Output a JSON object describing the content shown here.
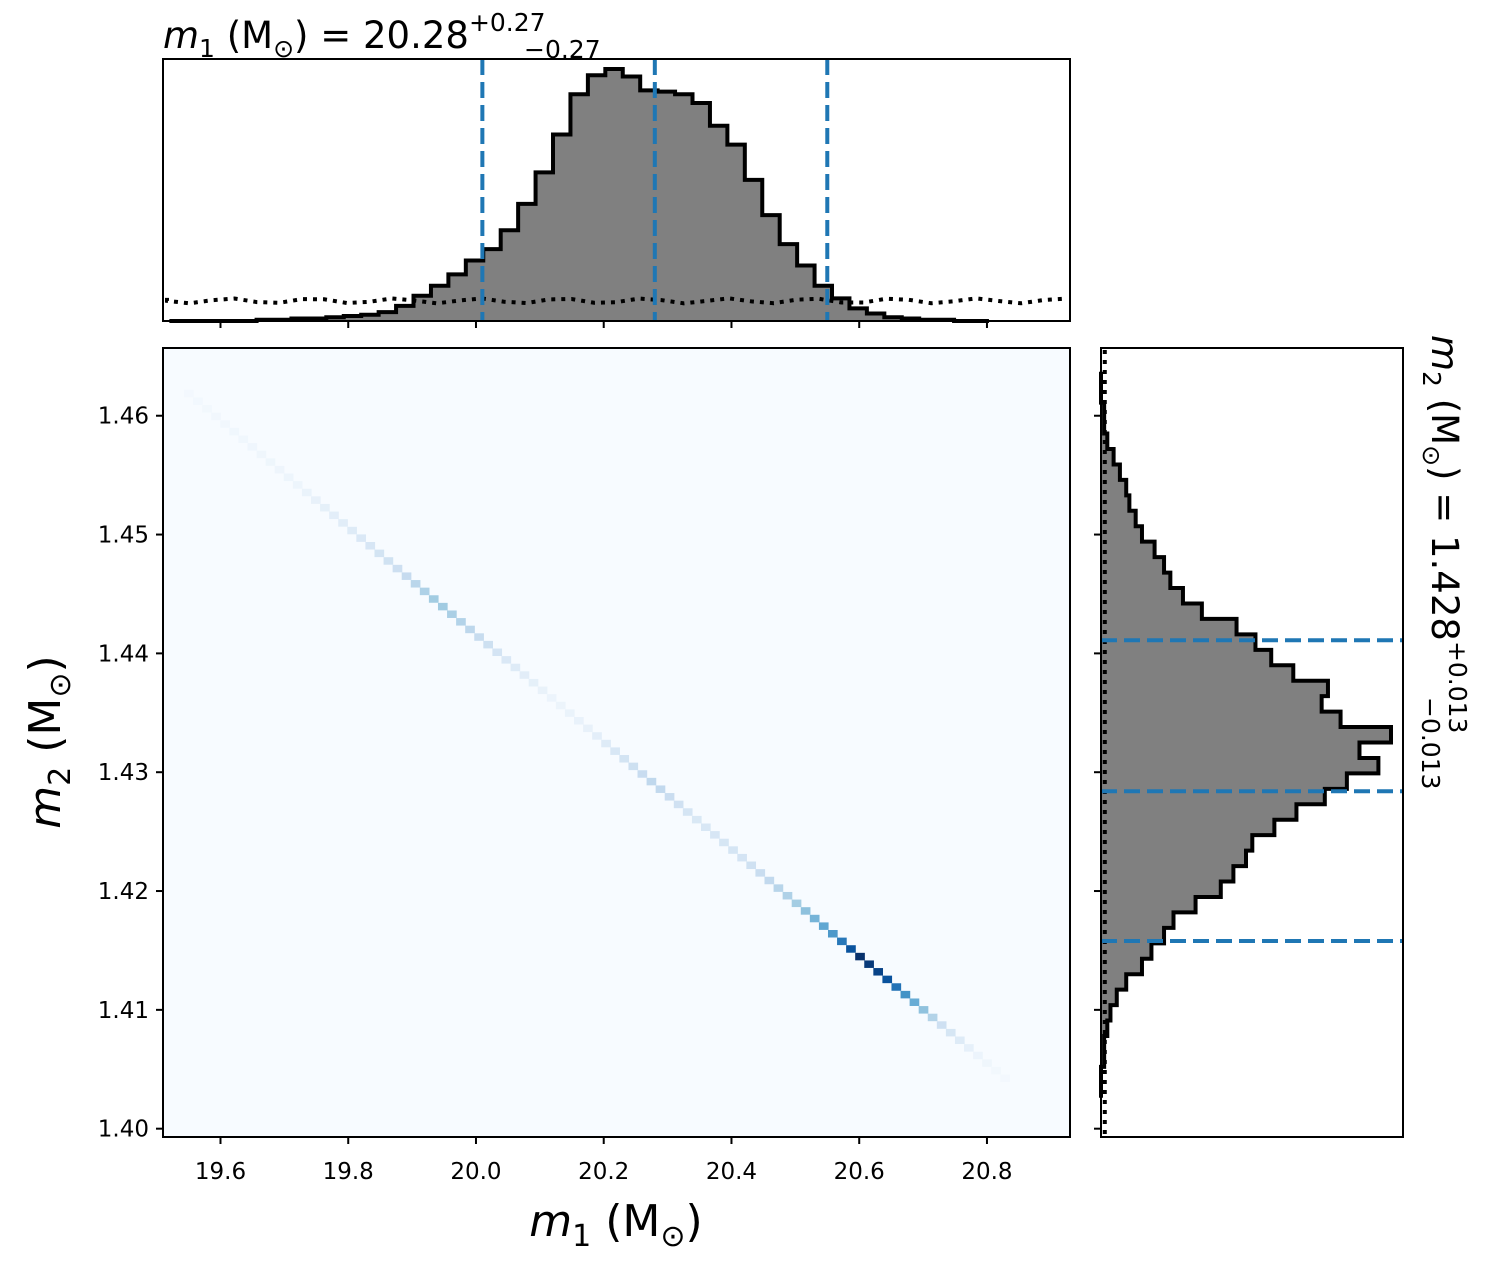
{
  "chart_data": [
    {
      "type": "histogram",
      "panel": "top-marginal",
      "title": {
        "symbol": "m",
        "subscript": "1",
        "unit": " (M",
        "sun": "⊙",
        "close": ") = ",
        "median": "20.28",
        "plus": "+0.27",
        "minus": "−0.27"
      },
      "xlim": [
        19.51,
        20.93
      ],
      "bins_start": 19.52,
      "bin_width": 0.0273,
      "counts": [
        0,
        0,
        0,
        0,
        0,
        1,
        1,
        2,
        2,
        3,
        4,
        5,
        7,
        12,
        20,
        28,
        37,
        48,
        57,
        72,
        93,
        118,
        148,
        180,
        195,
        200,
        194,
        183,
        182,
        180,
        173,
        155,
        140,
        112,
        84,
        61,
        44,
        28,
        18,
        10,
        6,
        3,
        2,
        1,
        1,
        0,
        0
      ],
      "prior_level": 16,
      "quantile_lines": [
        20.01,
        20.28,
        20.55
      ],
      "styles": {
        "hist_fill": "#808080",
        "hist_edge": "#000000",
        "line_color": "#1f77b4"
      }
    },
    {
      "type": "heatmap",
      "panel": "joint",
      "xlabel": {
        "symbol": "m",
        "subscript": "1",
        "unit": " (M",
        "sun": "⊙",
        "close": ")"
      },
      "ylabel": {
        "symbol": "m",
        "subscript": "2",
        "unit": " (M",
        "sun": "⊙",
        "close": ")"
      },
      "xlim": [
        19.51,
        20.93
      ],
      "ylim": [
        1.3993,
        1.4657
      ],
      "xticks": [
        "19.6",
        "19.8",
        "20.0",
        "20.2",
        "20.4",
        "20.6",
        "20.8"
      ],
      "yticks": [
        "1.40",
        "1.41",
        "1.42",
        "1.43",
        "1.44",
        "1.45",
        "1.46"
      ],
      "relation": {
        "x0": 19.7,
        "y0": 1.4551,
        "x1": 20.82,
        "y1": 1.4046
      },
      "intensity_profile": [
        [
          19.55,
          0.02
        ],
        [
          19.72,
          0.05
        ],
        [
          19.8,
          0.12
        ],
        [
          19.88,
          0.22
        ],
        [
          19.94,
          0.38
        ],
        [
          19.98,
          0.3
        ],
        [
          20.05,
          0.14
        ],
        [
          20.12,
          0.05
        ],
        [
          20.18,
          0.08
        ],
        [
          20.24,
          0.2
        ],
        [
          20.28,
          0.28
        ],
        [
          20.34,
          0.15
        ],
        [
          20.42,
          0.18
        ],
        [
          20.5,
          0.35
        ],
        [
          20.56,
          0.6
        ],
        [
          20.6,
          1.0
        ],
        [
          20.64,
          0.9
        ],
        [
          20.68,
          0.55
        ],
        [
          20.73,
          0.2
        ],
        [
          20.78,
          0.06
        ],
        [
          20.82,
          0.02
        ]
      ],
      "styles": {
        "background": "#f7fbff",
        "colormap": [
          "#f7fbff",
          "#deebf7",
          "#c6dbef",
          "#9ecae1",
          "#6baed6",
          "#4292c6",
          "#2171b5",
          "#08519c",
          "#08306b"
        ]
      }
    },
    {
      "type": "histogram",
      "panel": "right-marginal",
      "title": {
        "symbol": "m",
        "subscript": "2",
        "unit": " (M",
        "sun": "⊙",
        "close": ") = ",
        "median": "1.428",
        "plus": "+0.013",
        "minus": "−0.013"
      },
      "ylim": [
        1.3993,
        1.4657
      ],
      "bins_start": 1.4026,
      "bin_width": 0.0013,
      "counts": [
        0,
        0,
        1,
        1,
        2,
        3,
        5,
        8,
        13,
        16,
        20,
        23,
        30,
        38,
        42,
        46,
        48,
        55,
        62,
        71,
        78,
        88,
        82,
        92,
        76,
        70,
        72,
        61,
        54,
        49,
        43,
        32,
        26,
        22,
        20,
        17,
        13,
        11,
        9,
        8,
        6,
        4,
        2,
        1,
        1,
        0,
        0
      ],
      "prior_level": 1.2,
      "quantile_lines": [
        1.4158,
        1.4284,
        1.4411
      ],
      "styles": {
        "hist_fill": "#808080",
        "hist_edge": "#000000",
        "line_color": "#1f77b4"
      }
    }
  ]
}
